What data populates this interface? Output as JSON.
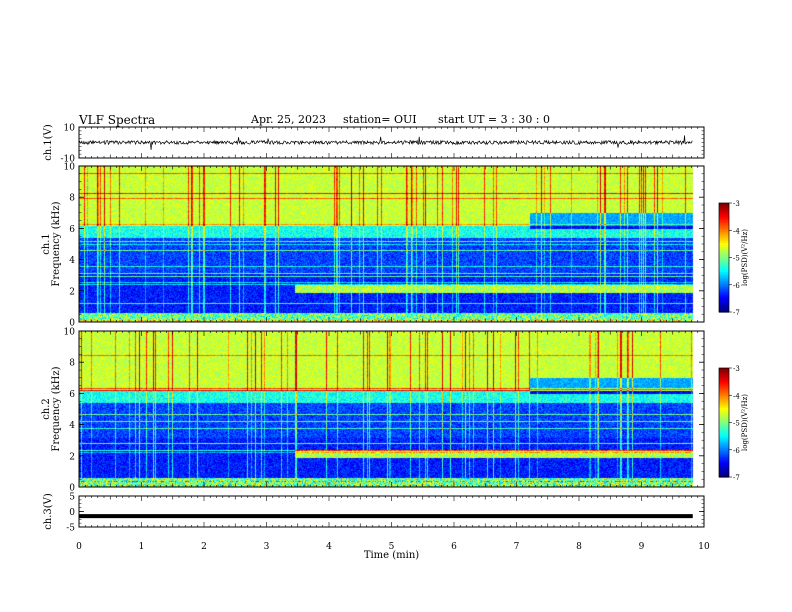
{
  "header": {
    "title": "VLF Spectra",
    "date": "Apr. 25, 2023",
    "station": "station= OUI",
    "start": "start UT = 3 : 30 : 0"
  },
  "chart_data": [
    {
      "type": "line",
      "panel": "ch1-waveform",
      "ylabel": "ch.1(V)",
      "ylim": [
        -10,
        10
      ],
      "yticks": [
        "10",
        "-10"
      ],
      "xlim": [
        0,
        10
      ],
      "series": [
        {
          "x_range": [
            0,
            9.82
          ],
          "level": 0,
          "amplitude": 1.2
        }
      ]
    },
    {
      "type": "heatmap",
      "panel": "ch1-spectrogram",
      "ylabel": "ch.1\nFrequency (kHz)",
      "ylim": [
        0,
        10
      ],
      "yticks": [
        "0",
        "2",
        "4",
        "6",
        "8",
        "10"
      ],
      "xlim": [
        0,
        9.82
      ],
      "colorbar": {
        "label": "log(PSD)(V²/Hz)",
        "ticks": [
          "-3",
          "-4",
          "-5",
          "-6",
          "-7"
        ],
        "range": [
          -7,
          -3
        ]
      },
      "notes": {
        "band_onset_min": 3.45,
        "band_khz": [
          1.9,
          2.4
        ],
        "upper_band_end_min": 7.2
      }
    },
    {
      "type": "heatmap",
      "panel": "ch2-spectrogram",
      "ylabel": "ch.2\nFrequency (kHz)",
      "ylim": [
        0,
        10
      ],
      "yticks": [
        "0",
        "2",
        "4",
        "6",
        "8",
        "10"
      ],
      "xlim": [
        0,
        9.82
      ],
      "colorbar": {
        "label": "log(PSD)(V²/Hz)",
        "ticks": [
          "-3",
          "-4",
          "-5",
          "-6",
          "-7"
        ],
        "range": [
          -7,
          -3
        ]
      },
      "notes": {
        "band_onset_min": 3.45,
        "band_khz": [
          1.9,
          2.4
        ],
        "upper_band_end_min": 7.2
      }
    },
    {
      "type": "line",
      "panel": "ch3-waveform",
      "ylabel": "ch.3(V)",
      "ylim": [
        -5,
        5
      ],
      "yticks": [
        "5",
        "0",
        "-5"
      ],
      "xlim": [
        0,
        10
      ],
      "series": [
        {
          "x_range": [
            0,
            9.82
          ],
          "level": -1.5
        }
      ]
    }
  ],
  "xaxis": {
    "label": "Time (min)",
    "ticks": [
      "0",
      "1",
      "2",
      "3",
      "4",
      "5",
      "6",
      "7",
      "8",
      "9",
      "10"
    ]
  },
  "colors": {
    "jet": [
      "#00007f",
      "#0000ff",
      "#007fff",
      "#00ffff",
      "#7fff7f",
      "#ffff00",
      "#ff7f00",
      "#ff0000",
      "#7f0000"
    ],
    "axis": "#000000"
  }
}
